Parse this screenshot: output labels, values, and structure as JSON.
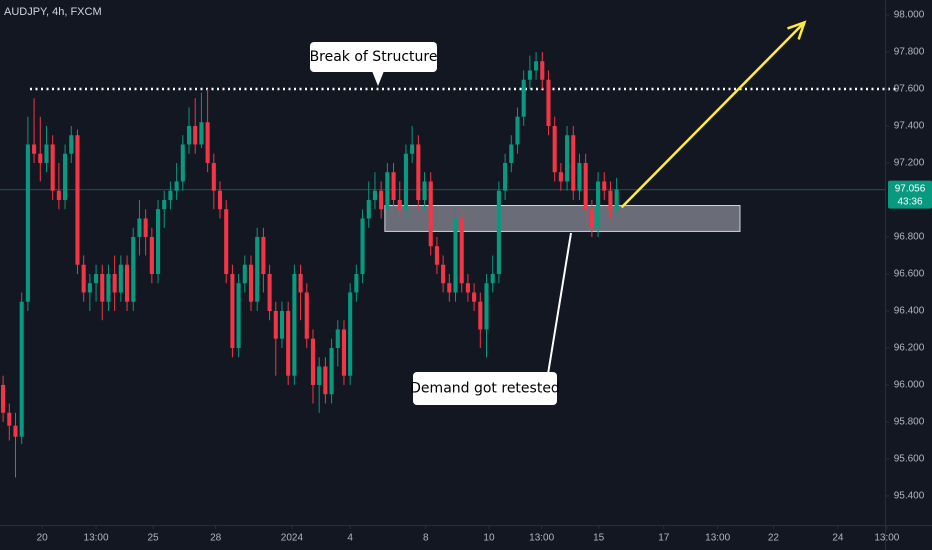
{
  "chart_data": {
    "type": "candlestick",
    "title": "AUDJPY, 4h, FXCM",
    "open": [
      96.0,
      95.85,
      95.78,
      95.72,
      96.45,
      97.3,
      97.25,
      97.2,
      97.3,
      97.05,
      97.0,
      97.25,
      97.35,
      96.65,
      96.5,
      96.55,
      96.6,
      96.45,
      96.6,
      96.5,
      96.65,
      96.45,
      96.8,
      96.9,
      96.8,
      96.6,
      96.95,
      97.0,
      97.05,
      97.1,
      97.3,
      97.4,
      97.3,
      97.42,
      97.2,
      97.05,
      96.95,
      96.6,
      96.2,
      96.55,
      96.65,
      96.45,
      96.8,
      96.6,
      96.4,
      96.25,
      96.4,
      96.05,
      96.6,
      96.5,
      96.25,
      96.0,
      96.1,
      95.95,
      96.2,
      96.3,
      96.05,
      96.5,
      96.6,
      96.9,
      97.0,
      97.05,
      96.95,
      97.15,
      97.0,
      96.95,
      97.25,
      97.3,
      97.0,
      97.1,
      96.75,
      96.65,
      96.55,
      96.5,
      96.9,
      96.55,
      96.5,
      96.45,
      96.3,
      96.55,
      96.6,
      97.05,
      97.2,
      97.3,
      97.45,
      97.65,
      97.7,
      97.75,
      97.65,
      97.4,
      97.15,
      97.1,
      97.35,
      97.05,
      97.2,
      96.95,
      96.85,
      97.1,
      97.05,
      96.95
    ],
    "high": [
      96.05,
      95.9,
      95.85,
      96.5,
      97.45,
      97.55,
      97.45,
      97.4,
      97.35,
      97.2,
      97.3,
      97.4,
      97.38,
      96.7,
      96.6,
      96.65,
      96.65,
      96.65,
      96.7,
      96.7,
      96.7,
      96.85,
      97.0,
      96.95,
      96.85,
      97.0,
      97.05,
      97.1,
      97.2,
      97.35,
      97.5,
      97.55,
      97.58,
      97.6,
      97.25,
      97.1,
      97.0,
      96.65,
      96.6,
      96.7,
      96.7,
      96.85,
      96.85,
      96.65,
      96.45,
      96.45,
      96.45,
      96.65,
      96.65,
      96.55,
      96.3,
      96.15,
      96.15,
      96.25,
      96.35,
      96.35,
      96.55,
      96.65,
      96.95,
      97.1,
      97.15,
      97.1,
      97.2,
      97.2,
      97.1,
      97.3,
      97.4,
      97.35,
      97.15,
      97.15,
      96.8,
      96.7,
      96.6,
      96.95,
      96.95,
      96.6,
      96.55,
      96.5,
      96.6,
      96.7,
      97.1,
      97.25,
      97.35,
      97.5,
      97.7,
      97.78,
      97.8,
      97.8,
      97.7,
      97.45,
      97.2,
      97.4,
      97.4,
      97.25,
      97.25,
      97.0,
      97.15,
      97.15,
      97.1,
      97.12
    ],
    "low": [
      95.8,
      95.7,
      95.5,
      95.68,
      96.4,
      97.2,
      97.1,
      97.15,
      97.0,
      96.95,
      96.95,
      97.2,
      96.6,
      96.45,
      96.4,
      96.45,
      96.35,
      96.4,
      96.4,
      96.45,
      96.4,
      96.4,
      96.7,
      96.7,
      96.55,
      96.55,
      96.85,
      96.95,
      97.0,
      97.05,
      97.25,
      97.25,
      97.28,
      97.15,
      96.95,
      96.9,
      96.55,
      96.15,
      96.15,
      96.5,
      96.4,
      96.4,
      96.5,
      96.35,
      96.05,
      96.2,
      96.0,
      96.0,
      96.35,
      96.2,
      95.9,
      95.85,
      95.9,
      95.9,
      96.1,
      96.0,
      96.0,
      96.45,
      96.55,
      96.85,
      96.95,
      96.9,
      96.9,
      96.95,
      96.9,
      96.9,
      97.2,
      96.95,
      96.95,
      96.7,
      96.6,
      96.5,
      96.45,
      96.45,
      96.5,
      96.45,
      96.4,
      96.2,
      96.15,
      96.5,
      96.55,
      97.0,
      97.15,
      97.25,
      97.4,
      97.6,
      97.65,
      97.6,
      97.35,
      97.1,
      97.05,
      97.05,
      97.0,
      97.0,
      96.9,
      96.8,
      96.8,
      97.0,
      96.9,
      96.93
    ],
    "close": [
      95.85,
      95.78,
      95.72,
      96.45,
      97.3,
      97.25,
      97.2,
      97.3,
      97.05,
      97.0,
      97.25,
      97.35,
      96.65,
      96.5,
      96.55,
      96.6,
      96.45,
      96.6,
      96.5,
      96.65,
      96.45,
      96.8,
      96.9,
      96.8,
      96.6,
      96.95,
      97.0,
      97.05,
      97.1,
      97.3,
      97.4,
      97.3,
      97.42,
      97.2,
      97.05,
      96.95,
      96.6,
      96.2,
      96.55,
      96.65,
      96.45,
      96.8,
      96.6,
      96.4,
      96.25,
      96.4,
      96.05,
      96.6,
      96.5,
      96.25,
      96.0,
      96.1,
      95.95,
      96.2,
      96.3,
      96.05,
      96.5,
      96.6,
      96.9,
      97.0,
      97.05,
      96.95,
      97.15,
      97.0,
      96.95,
      97.25,
      97.3,
      97.0,
      97.1,
      96.75,
      96.65,
      96.55,
      96.5,
      96.9,
      96.55,
      96.5,
      96.45,
      96.3,
      96.55,
      96.6,
      97.05,
      97.2,
      97.3,
      97.45,
      97.65,
      97.7,
      97.75,
      97.65,
      97.4,
      97.15,
      97.1,
      97.35,
      97.05,
      97.2,
      96.95,
      96.85,
      97.1,
      97.05,
      96.95,
      97.056
    ],
    "up_color": "#089981",
    "down_color": "#f23645",
    "countdown": "43:36",
    "xlim": [
      -0.5,
      142.3
    ],
    "ylim": [
      95.243,
      98.081
    ],
    "xticks": [
      {
        "value": 6.3,
        "label": "20"
      },
      {
        "value": 15.0,
        "label": "13:00"
      },
      {
        "value": 24.2,
        "label": "25"
      },
      {
        "value": 34.3,
        "label": "28"
      },
      {
        "value": 46.6,
        "label": "2024"
      },
      {
        "value": 56.0,
        "label": "4"
      },
      {
        "value": 68.2,
        "label": "8"
      },
      {
        "value": 78.4,
        "label": "10"
      },
      {
        "value": 86.9,
        "label": "13:00"
      },
      {
        "value": 96.1,
        "label": "15"
      },
      {
        "value": 106.6,
        "label": "17"
      },
      {
        "value": 115.3,
        "label": "13:00"
      },
      {
        "value": 124.3,
        "label": "22"
      },
      {
        "value": 134.7,
        "label": "24"
      },
      {
        "value": 142.6,
        "label": "13:00"
      }
    ],
    "yticks": [
      {
        "value": 98.0,
        "label": "98.000"
      },
      {
        "value": 97.8,
        "label": "97.800"
      },
      {
        "value": 97.6,
        "label": "97.600"
      },
      {
        "value": 97.4,
        "label": "97.400"
      },
      {
        "value": 97.2,
        "label": "97.200"
      },
      {
        "value": 96.8,
        "label": "96.800"
      },
      {
        "value": 96.6,
        "label": "96.600"
      },
      {
        "value": 96.4,
        "label": "96.400"
      },
      {
        "value": 96.2,
        "label": "96.200"
      },
      {
        "value": 96.0,
        "label": "96.000"
      },
      {
        "value": 95.8,
        "label": "95.800"
      },
      {
        "value": 95.6,
        "label": "95.600"
      },
      {
        "value": 95.4,
        "label": "95.400"
      }
    ],
    "level": 97.6,
    "zone": {
      "x": [
        61.6,
        118.9
      ],
      "y": [
        96.83,
        96.97
      ]
    },
    "arrow": {
      "x": [
        99.8,
        129.3
      ],
      "y": [
        96.96,
        97.96
      ]
    },
    "annotations": [
      "Break of Structure",
      "Demand got retested"
    ]
  }
}
